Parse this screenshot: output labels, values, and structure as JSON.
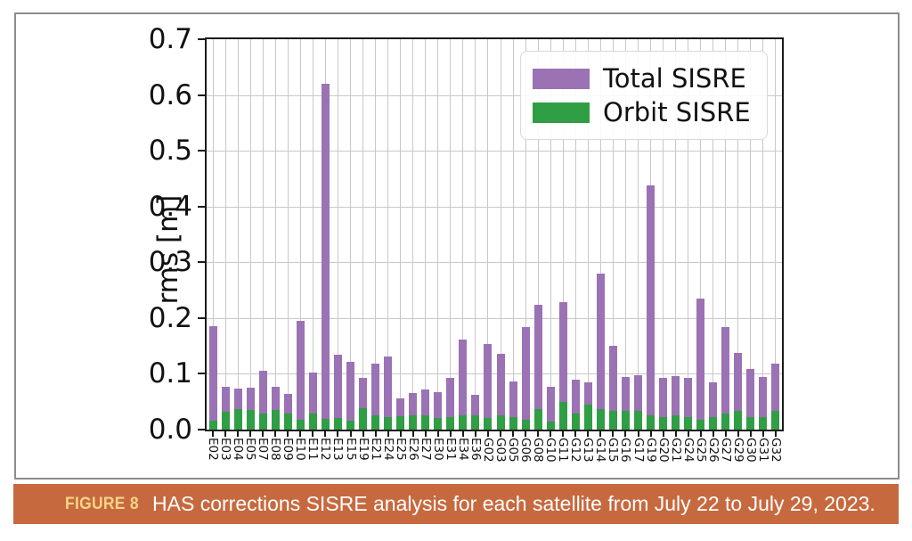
{
  "figure_caption": {
    "label": "FIGURE 8",
    "text": "HAS corrections SISRE analysis for each satellite from July 22 to July 29, 2023."
  },
  "colors": {
    "caption_bg": "#c7693f",
    "caption_label": "#f6d488",
    "caption_text": "#ffffff",
    "total_bar": "#9b72b4",
    "orbit_bar": "#2f9e44",
    "grid": "#c8c8c8",
    "spine": "#1a1a1a",
    "outer_border": "#8c8c8c"
  },
  "chart_data": {
    "type": "bar",
    "title": "",
    "xlabel": "",
    "ylabel": "rms [m]",
    "ylim": [
      0,
      0.7
    ],
    "yticks": [
      "0.0",
      "0.1",
      "0.2",
      "0.3",
      "0.4",
      "0.5",
      "0.6",
      "0.7"
    ],
    "grid": true,
    "legend_position": "upper-right",
    "categories": [
      "E02",
      "E03",
      "E04",
      "E05",
      "E07",
      "E08",
      "E09",
      "E10",
      "E11",
      "E12",
      "E13",
      "E15",
      "E19",
      "E21",
      "E24",
      "E25",
      "E26",
      "E27",
      "E30",
      "E31",
      "E34",
      "E36",
      "G02",
      "G03",
      "G05",
      "G06",
      "G08",
      "G10",
      "G11",
      "G12",
      "G13",
      "G14",
      "G15",
      "G16",
      "G17",
      "G19",
      "G20",
      "G21",
      "G24",
      "G25",
      "G26",
      "G27",
      "G29",
      "G30",
      "G31",
      "G32"
    ],
    "series": [
      {
        "name": "Total SISRE",
        "color": "#9b72b4",
        "values": [
          0.185,
          0.077,
          0.074,
          0.075,
          0.105,
          0.077,
          0.064,
          0.195,
          0.103,
          0.62,
          0.134,
          0.121,
          0.093,
          0.118,
          0.131,
          0.056,
          0.066,
          0.072,
          0.067,
          0.092,
          0.161,
          0.063,
          0.153,
          0.136,
          0.086,
          0.184,
          0.224,
          0.077,
          0.229,
          0.089,
          0.085,
          0.279,
          0.15,
          0.094,
          0.098,
          0.438,
          0.092,
          0.096,
          0.093,
          0.235,
          0.084,
          0.184,
          0.138,
          0.108,
          0.095,
          0.118
        ]
      },
      {
        "name": "Orbit SISRE",
        "color": "#2f9e44",
        "values": [
          0.016,
          0.032,
          0.036,
          0.035,
          0.028,
          0.035,
          0.028,
          0.017,
          0.028,
          0.02,
          0.021,
          0.016,
          0.039,
          0.026,
          0.022,
          0.024,
          0.026,
          0.025,
          0.021,
          0.023,
          0.025,
          0.026,
          0.021,
          0.025,
          0.022,
          0.017,
          0.036,
          0.015,
          0.05,
          0.028,
          0.044,
          0.036,
          0.034,
          0.034,
          0.034,
          0.026,
          0.023,
          0.025,
          0.023,
          0.017,
          0.022,
          0.028,
          0.033,
          0.022,
          0.023,
          0.034
        ]
      }
    ]
  }
}
